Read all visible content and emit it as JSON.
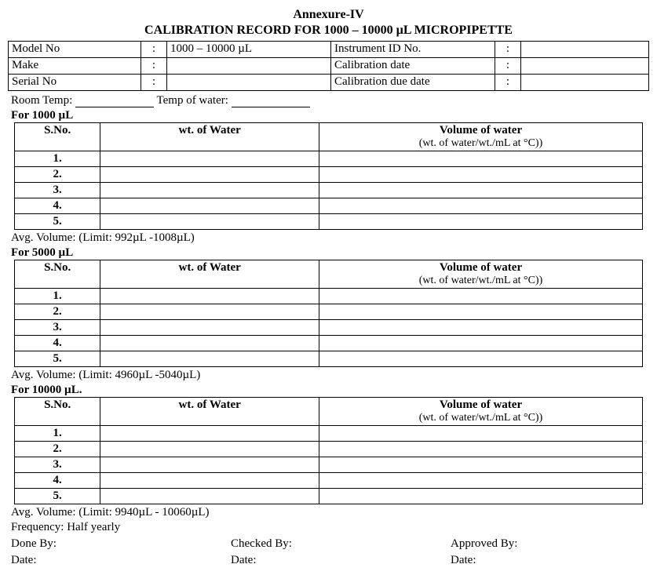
{
  "titles": {
    "annex": "Annexure-IV",
    "main": "CALIBRATION RECORD FOR 1000 – 10000 µL MICROPIPETTE"
  },
  "header": {
    "model_no_label": "Model No",
    "model_no_value": "1000 – 10000 µL",
    "instrument_id_label": "Instrument ID No.",
    "instrument_id_value": "",
    "make_label": "Make",
    "make_value": "",
    "cal_date_label": "Calibration date",
    "cal_date_value": "",
    "serial_no_label": "Serial No",
    "serial_no_value": "",
    "cal_due_label": "Calibration due date",
    "cal_due_value": "",
    "colon": ":"
  },
  "env": {
    "room_temp_label": "Room Temp:",
    "temp_water_label": "Temp of water:"
  },
  "sections": [
    {
      "label": "For 1000 µL",
      "avg": "Avg. Volume: (Limit: 992µL -1008µL)"
    },
    {
      "label": "For 5000 µL",
      "avg": "Avg. Volume: (Limit: 4960µL -5040µL)"
    },
    {
      "label": "For 10000 µL.",
      "avg": "Avg. Volume: (Limit: 9940µL - 10060µL)"
    }
  ],
  "table_headers": {
    "sno": "S.No.",
    "wt": "wt. of Water",
    "vol_line1": "Volume of water",
    "vol_line2": "(wt. of water/wt./mL at        °C))"
  },
  "rows": [
    "1.",
    "2.",
    "3.",
    "4.",
    "5."
  ],
  "footer": {
    "frequency": "Frequency: Half yearly",
    "done_by": "Done By:",
    "checked_by": "Checked By:",
    "approved_by": "Approved By:",
    "date": "Date:"
  }
}
